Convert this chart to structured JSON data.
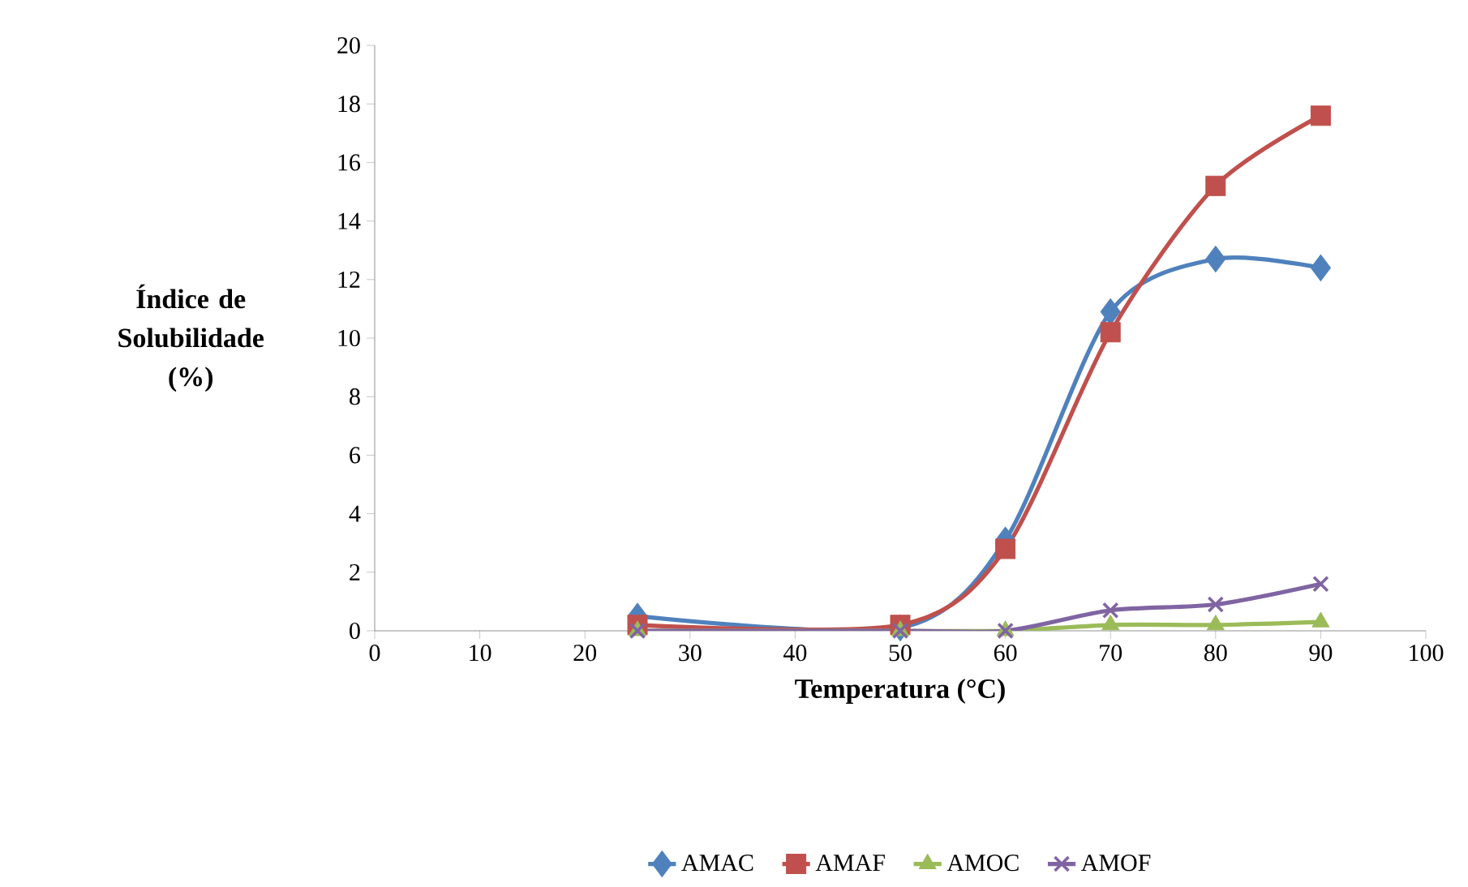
{
  "chart_data": {
    "type": "line",
    "xlabel": "Temperatura (°C)",
    "ylabel": "Índice de Solubilidade (%)",
    "x": [
      25,
      50,
      60,
      70,
      80,
      90
    ],
    "series": [
      {
        "name": "AMAC",
        "color": "#4f81bd",
        "marker": "diamond",
        "values": [
          0.5,
          0.1,
          3.1,
          10.9,
          12.7,
          12.4
        ]
      },
      {
        "name": "AMAF",
        "color": "#c0504d",
        "marker": "square",
        "values": [
          0.2,
          0.2,
          2.8,
          10.2,
          15.2,
          17.6
        ]
      },
      {
        "name": "AMOC",
        "color": "#9bbb59",
        "marker": "triangle",
        "values": [
          0,
          0,
          0,
          0.2,
          0.2,
          0.3
        ]
      },
      {
        "name": "AMOF",
        "color": "#8064a2",
        "marker": "cross",
        "values": [
          0,
          0,
          0,
          0.7,
          0.9,
          1.6
        ]
      }
    ],
    "xlim": [
      0,
      100
    ],
    "xticks": [
      0,
      10,
      20,
      30,
      40,
      50,
      60,
      70,
      80,
      90,
      100
    ],
    "ylim": [
      0,
      20
    ],
    "yticks": [
      0,
      2,
      4,
      6,
      8,
      10,
      12,
      14,
      16,
      18,
      20
    ],
    "grid": false,
    "legend": "bottom",
    "line_style": "solid"
  }
}
